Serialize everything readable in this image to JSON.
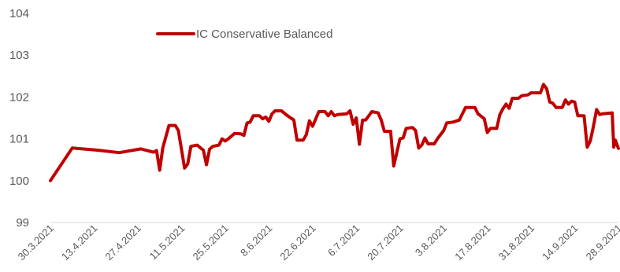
{
  "chart_data": {
    "type": "line",
    "title": "",
    "xlabel": "",
    "ylabel": "",
    "ylim": [
      99,
      104
    ],
    "yticks": [
      "99",
      "100",
      "101",
      "102",
      "103",
      "104"
    ],
    "x_tick_labels": [
      "30.3.2021",
      "13.4.2021",
      "27.4.2021",
      "11.5.2021",
      "25.5.2021",
      "8.6.2021",
      "22.6.2021",
      "6.7.2021",
      "20.7.2021",
      "3.8.2021",
      "17.8.2021",
      "31.8.2021",
      "14.9.2021",
      "28.9.2021"
    ],
    "x_range_days": [
      0,
      182
    ],
    "grid": false,
    "legend": {
      "position": "top-left",
      "entries": [
        "IC Conservative Balanced"
      ]
    },
    "colors": {
      "series": "#c00000",
      "text": "#595959"
    },
    "series": [
      {
        "name": "IC Conservative Balanced",
        "points": [
          [
            0,
            100.0
          ],
          [
            7,
            100.78
          ],
          [
            15,
            100.73
          ],
          [
            22,
            100.67
          ],
          [
            29,
            100.76
          ],
          [
            33,
            100.68
          ],
          [
            34,
            100.72
          ],
          [
            35,
            100.25
          ],
          [
            36,
            100.78
          ],
          [
            38,
            101.32
          ],
          [
            40,
            101.32
          ],
          [
            41,
            101.2
          ],
          [
            43,
            100.3
          ],
          [
            44,
            100.4
          ],
          [
            45,
            100.82
          ],
          [
            47,
            100.85
          ],
          [
            49,
            100.73
          ],
          [
            50,
            100.38
          ],
          [
            51,
            100.75
          ],
          [
            52,
            100.82
          ],
          [
            54,
            100.85
          ],
          [
            55,
            101.0
          ],
          [
            56,
            100.95
          ],
          [
            57,
            101.0
          ],
          [
            59,
            101.13
          ],
          [
            61,
            101.12
          ],
          [
            62,
            101.08
          ],
          [
            63,
            101.38
          ],
          [
            64,
            101.4
          ],
          [
            65,
            101.55
          ],
          [
            67,
            101.55
          ],
          [
            68,
            101.48
          ],
          [
            69,
            101.52
          ],
          [
            70,
            101.42
          ],
          [
            71,
            101.6
          ],
          [
            72,
            101.67
          ],
          [
            74,
            101.67
          ],
          [
            76,
            101.55
          ],
          [
            78,
            101.45
          ],
          [
            79,
            100.97
          ],
          [
            81,
            100.97
          ],
          [
            82,
            101.1
          ],
          [
            83,
            101.43
          ],
          [
            84,
            101.3
          ],
          [
            86,
            101.65
          ],
          [
            88,
            101.65
          ],
          [
            89,
            101.55
          ],
          [
            90,
            101.65
          ],
          [
            91,
            101.55
          ],
          [
            92,
            101.58
          ],
          [
            95,
            101.6
          ],
          [
            96,
            101.67
          ],
          [
            97,
            101.35
          ],
          [
            98,
            101.5
          ],
          [
            99,
            100.87
          ],
          [
            100,
            101.45
          ],
          [
            101,
            101.45
          ],
          [
            102,
            101.55
          ],
          [
            103,
            101.65
          ],
          [
            105,
            101.62
          ],
          [
            106,
            101.45
          ],
          [
            107,
            101.18
          ],
          [
            109,
            101.18
          ],
          [
            110,
            100.35
          ],
          [
            112,
            101.0
          ],
          [
            113,
            101.02
          ],
          [
            114,
            101.25
          ],
          [
            116,
            101.27
          ],
          [
            117,
            101.2
          ],
          [
            118,
            100.78
          ],
          [
            119,
            100.85
          ],
          [
            120,
            101.02
          ],
          [
            121,
            100.88
          ],
          [
            123,
            100.88
          ],
          [
            124,
            101.0
          ],
          [
            126,
            101.2
          ],
          [
            127,
            101.38
          ],
          [
            129,
            101.4
          ],
          [
            131,
            101.45
          ],
          [
            133,
            101.75
          ],
          [
            136,
            101.75
          ],
          [
            137,
            101.6
          ],
          [
            139,
            101.48
          ],
          [
            140,
            101.15
          ],
          [
            141,
            101.25
          ],
          [
            143,
            101.25
          ],
          [
            144,
            101.58
          ],
          [
            145,
            101.72
          ],
          [
            146,
            101.83
          ],
          [
            147,
            101.73
          ],
          [
            148,
            101.97
          ],
          [
            150,
            101.97
          ],
          [
            151,
            102.03
          ],
          [
            153,
            102.05
          ],
          [
            154,
            102.1
          ],
          [
            156,
            102.1
          ],
          [
            157,
            102.1
          ],
          [
            158,
            102.3
          ],
          [
            159,
            102.2
          ],
          [
            160,
            101.88
          ],
          [
            161,
            101.85
          ],
          [
            162,
            101.75
          ],
          [
            164,
            101.75
          ],
          [
            165,
            101.93
          ],
          [
            166,
            101.83
          ],
          [
            167,
            101.9
          ],
          [
            168,
            101.88
          ],
          [
            169,
            101.55
          ],
          [
            171,
            101.55
          ],
          [
            172,
            100.8
          ],
          [
            173,
            100.95
          ],
          [
            174,
            101.3
          ],
          [
            175,
            101.7
          ],
          [
            176,
            101.58
          ],
          [
            177,
            101.6
          ],
          [
            180,
            101.62
          ],
          [
            180.5,
            100.8
          ],
          [
            181,
            100.97
          ],
          [
            182,
            100.77
          ]
        ]
      }
    ]
  }
}
